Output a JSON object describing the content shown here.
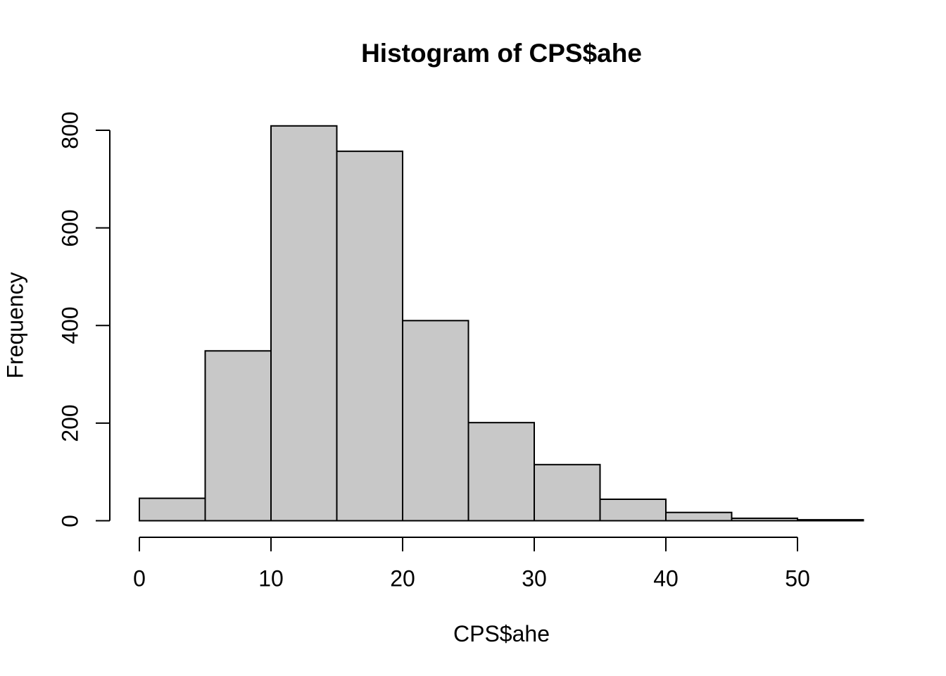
{
  "chart_data": {
    "type": "bar",
    "subtype": "histogram",
    "title": "Histogram of CPS$ahe",
    "xlabel": "CPS$ahe",
    "ylabel": "Frequency",
    "bin_width": 5,
    "bin_edges": [
      0,
      5,
      10,
      15,
      20,
      25,
      30,
      35,
      40,
      45,
      50,
      55
    ],
    "frequencies": [
      46,
      348,
      809,
      757,
      410,
      201,
      115,
      44,
      17,
      5,
      2
    ],
    "xticks": [
      0,
      10,
      20,
      30,
      40,
      50
    ],
    "yticks": [
      0,
      200,
      400,
      600,
      800
    ],
    "xlim": [
      0,
      55
    ],
    "ylim": [
      0,
      800
    ],
    "grid": "off",
    "legend": "none",
    "bar_fill": "#c8c8c8",
    "bar_stroke": "#000000",
    "axis_color": "#000000",
    "text_color": "#000000",
    "background": "#ffffff"
  }
}
